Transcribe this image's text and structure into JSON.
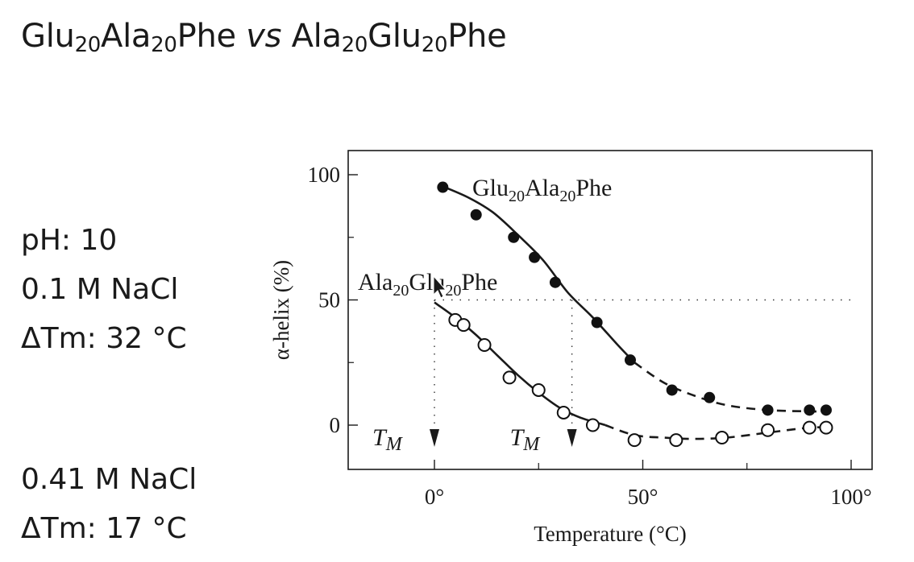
{
  "slide": {
    "title": {
      "p1": "Glu",
      "s1": "20",
      "p2": "Ala",
      "s2": "20",
      "p3": "Phe ",
      "vs": "vs",
      "p4": " Ala",
      "s3": "20",
      "p5": "Glu",
      "s4": "20",
      "p6": "Phe"
    },
    "conditions_1": [
      "pH: 10",
      "0.1 M NaCl",
      "ΔTm: 32 °C"
    ],
    "conditions_2": [
      "0.41 M NaCl",
      "ΔTm: 17 °C"
    ]
  },
  "chart_data": {
    "type": "scatter",
    "xlabel": "Temperature (°C)",
    "ylabel": "α-helix (%)",
    "xlim": [
      -20,
      105
    ],
    "ylim": [
      -18,
      110
    ],
    "xticks": [
      0,
      50,
      100
    ],
    "xtick_labels": [
      "0°",
      "50°",
      "100°"
    ],
    "yticks": [
      0,
      50,
      100
    ],
    "ytick_labels": [
      "0",
      "50",
      "100"
    ],
    "reference_line": {
      "y": 50,
      "style": "dotted"
    },
    "tm_markers": [
      {
        "x": 0,
        "label_main": "T",
        "label_sub": "M"
      },
      {
        "x": 33,
        "label_main": "T",
        "label_sub": "M"
      }
    ],
    "series": [
      {
        "name": "Glu20Ala20Phe",
        "label_parts": [
          "Glu",
          "20",
          "Ala",
          "20",
          "Phe"
        ],
        "marker": "filled",
        "points": [
          [
            2,
            95
          ],
          [
            10,
            84
          ],
          [
            19,
            75
          ],
          [
            24,
            67
          ],
          [
            29,
            57
          ],
          [
            39,
            41
          ],
          [
            47,
            26
          ],
          [
            57,
            14
          ],
          [
            66,
            11
          ],
          [
            80,
            6
          ],
          [
            90,
            6
          ],
          [
            94,
            6
          ]
        ],
        "fit_solid": [
          [
            1,
            96
          ],
          [
            8,
            91
          ],
          [
            14,
            85
          ],
          [
            20,
            76
          ],
          [
            26,
            66
          ],
          [
            32,
            53
          ],
          [
            38,
            43
          ],
          [
            44,
            32
          ],
          [
            48,
            25
          ]
        ],
        "fit_dashed": [
          [
            48,
            25
          ],
          [
            55,
            17
          ],
          [
            62,
            12
          ],
          [
            70,
            8
          ],
          [
            80,
            6
          ],
          [
            90,
            5.5
          ],
          [
            95,
            5.5
          ]
        ]
      },
      {
        "name": "Ala20Glu20Phe",
        "label_parts": [
          "Ala",
          "20",
          "Glu",
          "20",
          "Phe"
        ],
        "marker": "open",
        "points": [
          [
            5,
            42
          ],
          [
            7,
            40
          ],
          [
            12,
            32
          ],
          [
            18,
            19
          ],
          [
            25,
            14
          ],
          [
            31,
            5
          ],
          [
            38,
            0
          ],
          [
            48,
            -6
          ],
          [
            58,
            -6
          ],
          [
            69,
            -5
          ],
          [
            80,
            -2
          ],
          [
            90,
            -1
          ],
          [
            94,
            -1
          ]
        ],
        "fit_solid": [
          [
            0,
            49
          ],
          [
            5,
            43
          ],
          [
            10,
            36
          ],
          [
            15,
            28
          ],
          [
            20,
            20
          ],
          [
            25,
            13
          ],
          [
            30,
            7
          ],
          [
            35,
            3
          ],
          [
            41,
            0
          ]
        ],
        "fit_dashed": [
          [
            41,
            0
          ],
          [
            48,
            -4
          ],
          [
            55,
            -5
          ],
          [
            62,
            -5.5
          ],
          [
            70,
            -5
          ],
          [
            80,
            -3
          ],
          [
            90,
            -1
          ],
          [
            95,
            -1
          ]
        ]
      }
    ]
  }
}
